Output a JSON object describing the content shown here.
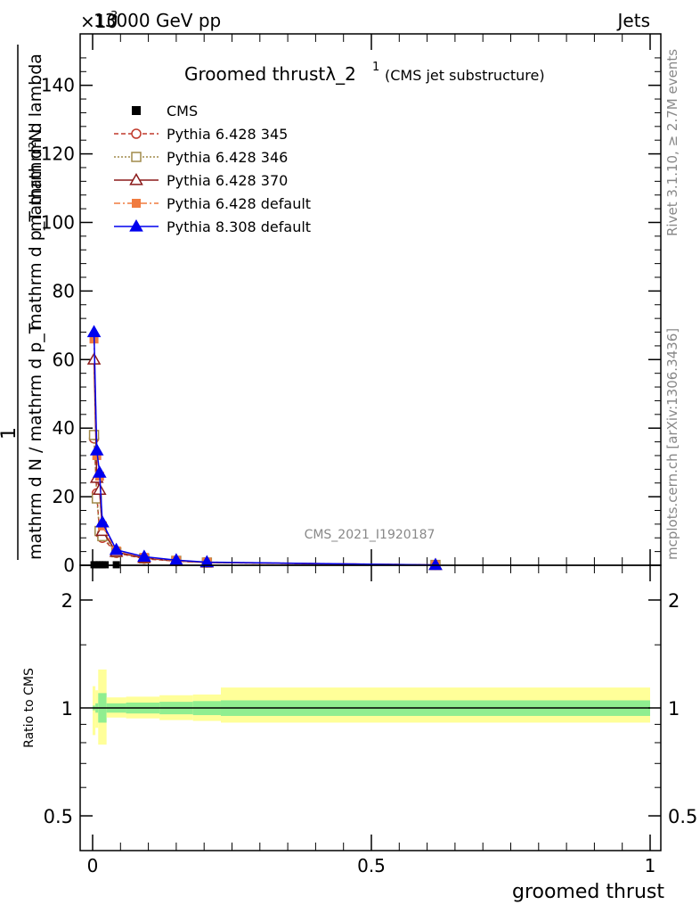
{
  "header": {
    "left": "13000 GeV pp",
    "right": "Jets",
    "exponent_label": "×10^3",
    "exponent_base": "×10",
    "exponent_power": "3"
  },
  "side_labels": {
    "rivet": "Rivet 3.1.10, ≥ 2.7M events",
    "mcplots": "mcplots.cern.ch [arXiv:1306.3436]"
  },
  "watermark": "CMS_2021_I1920187",
  "chart_data": [
    {
      "type": "line",
      "panel": "main",
      "title": "Groomed thrustλ_2^1 (CMS jet substructure)",
      "title_main": "Groomed thrustλ_2",
      "title_sup": "1",
      "title_suffix": "(CMS jet substructure)",
      "ylabel": "1 / (mathrm d N / mathrm d p_T) · mathrm d^2N / (mathrm d p_T mathrm d lambda)",
      "ylabel_numerator_one": "1",
      "ylabel_denominator_one": "mathrm d N / mathrm d p_T",
      "ylabel_numerator_two": "mathrm d²N",
      "ylabel_denominator_two": "mathrm d p_T mathrm d lambda",
      "ylabel_unit_scale": "×10^3",
      "xlim": [
        0,
        1
      ],
      "ylim": [
        0,
        155
      ],
      "yticks": [
        0,
        20,
        40,
        60,
        80,
        100,
        120,
        140
      ],
      "ytick_labels": [
        "0",
        "20",
        "40",
        "60",
        "80",
        "100",
        "120",
        "140"
      ],
      "legend_position": "top-left",
      "series": [
        {
          "name": "CMS",
          "color": "#000000",
          "marker": "square-filled",
          "line": "none",
          "x": [
            0.0025,
            0.0075,
            0.0125,
            0.0175,
            0.0225,
            0.0425
          ],
          "y": [
            0.15,
            0.15,
            0.15,
            0.15,
            0.15,
            0.15
          ]
        },
        {
          "name": "Pythia 6.428 345",
          "color": "#c0392b",
          "marker": "circle-open",
          "line": "dashed",
          "x": [
            0.0025,
            0.0075,
            0.0125,
            0.0175,
            0.0425,
            0.0925,
            0.15,
            0.205,
            0.615
          ],
          "y": [
            37,
            21,
            9.5,
            8.0,
            3.6,
            1.9,
            1.2,
            0.8,
            0.1
          ]
        },
        {
          "name": "Pythia 6.428 346",
          "color": "#a08a4a",
          "marker": "square-open",
          "line": "dotted",
          "x": [
            0.0025,
            0.0075,
            0.0125,
            0.0175,
            0.0425,
            0.0925,
            0.15,
            0.205,
            0.615
          ],
          "y": [
            38,
            19.5,
            10,
            8.5,
            3.8,
            2.0,
            1.3,
            0.8,
            0.1
          ]
        },
        {
          "name": "Pythia 6.428 370",
          "color": "#8b1a1a",
          "marker": "triangle-open",
          "line": "solid",
          "x": [
            0.0025,
            0.0075,
            0.0125,
            0.0175,
            0.0425,
            0.0925,
            0.15,
            0.205,
            0.615
          ],
          "y": [
            60,
            25.5,
            22,
            10,
            3.9,
            2.1,
            1.3,
            0.8,
            0.1
          ]
        },
        {
          "name": "Pythia 6.428 default",
          "color": "#f07b3f",
          "marker": "square-filled",
          "line": "dashdot",
          "x": [
            0.0025,
            0.0075,
            0.0125,
            0.0175,
            0.0425,
            0.0925,
            0.15,
            0.205,
            0.615
          ],
          "y": [
            66,
            32,
            26,
            11.5,
            4.2,
            2.3,
            1.4,
            0.9,
            0.1
          ]
        },
        {
          "name": "Pythia 8.308 default",
          "color": "#0000ee",
          "marker": "triangle-filled",
          "line": "solid",
          "x": [
            0.0025,
            0.0075,
            0.0125,
            0.0175,
            0.0425,
            0.0925,
            0.15,
            0.205,
            0.615
          ],
          "y": [
            68,
            33.5,
            27,
            12.5,
            4.5,
            2.5,
            1.5,
            0.9,
            0.1
          ]
        }
      ]
    },
    {
      "type": "area",
      "panel": "ratio",
      "ylabel": "Ratio to CMS",
      "xlabel": "groomed thrust",
      "scale": "log",
      "ylim": [
        0.4,
        2.5
      ],
      "yticks": [
        0.5,
        1,
        2
      ],
      "ytick_labels": [
        "0.5",
        "1",
        "2"
      ],
      "xticks": [
        0,
        0.5,
        1
      ],
      "xtick_labels": [
        "0",
        "0.5",
        "1"
      ],
      "reference_line": 1,
      "bands": {
        "inner_color": "#90ee90",
        "outer_color": "#ffff99",
        "bins": [
          {
            "x0": 0.0,
            "x1": 0.005,
            "inner": [
              0.985,
              1.015
            ],
            "outer": [
              0.84,
              1.15
            ]
          },
          {
            "x0": 0.005,
            "x1": 0.01,
            "inner": [
              0.97,
              1.03
            ],
            "outer": [
              0.88,
              1.12
            ]
          },
          {
            "x0": 0.01,
            "x1": 0.025,
            "inner": [
              0.91,
              1.1
            ],
            "outer": [
              0.79,
              1.28
            ]
          },
          {
            "x0": 0.025,
            "x1": 0.06,
            "inner": [
              0.97,
              1.03
            ],
            "outer": [
              0.94,
              1.07
            ]
          },
          {
            "x0": 0.06,
            "x1": 0.12,
            "inner": [
              0.965,
              1.035
            ],
            "outer": [
              0.935,
              1.075
            ]
          },
          {
            "x0": 0.12,
            "x1": 0.18,
            "inner": [
              0.96,
              1.04
            ],
            "outer": [
              0.925,
              1.085
            ]
          },
          {
            "x0": 0.18,
            "x1": 0.23,
            "inner": [
              0.955,
              1.045
            ],
            "outer": [
              0.92,
              1.09
            ]
          },
          {
            "x0": 0.23,
            "x1": 1.0,
            "inner": [
              0.95,
              1.05
            ],
            "outer": [
              0.91,
              1.14
            ]
          }
        ]
      }
    }
  ]
}
